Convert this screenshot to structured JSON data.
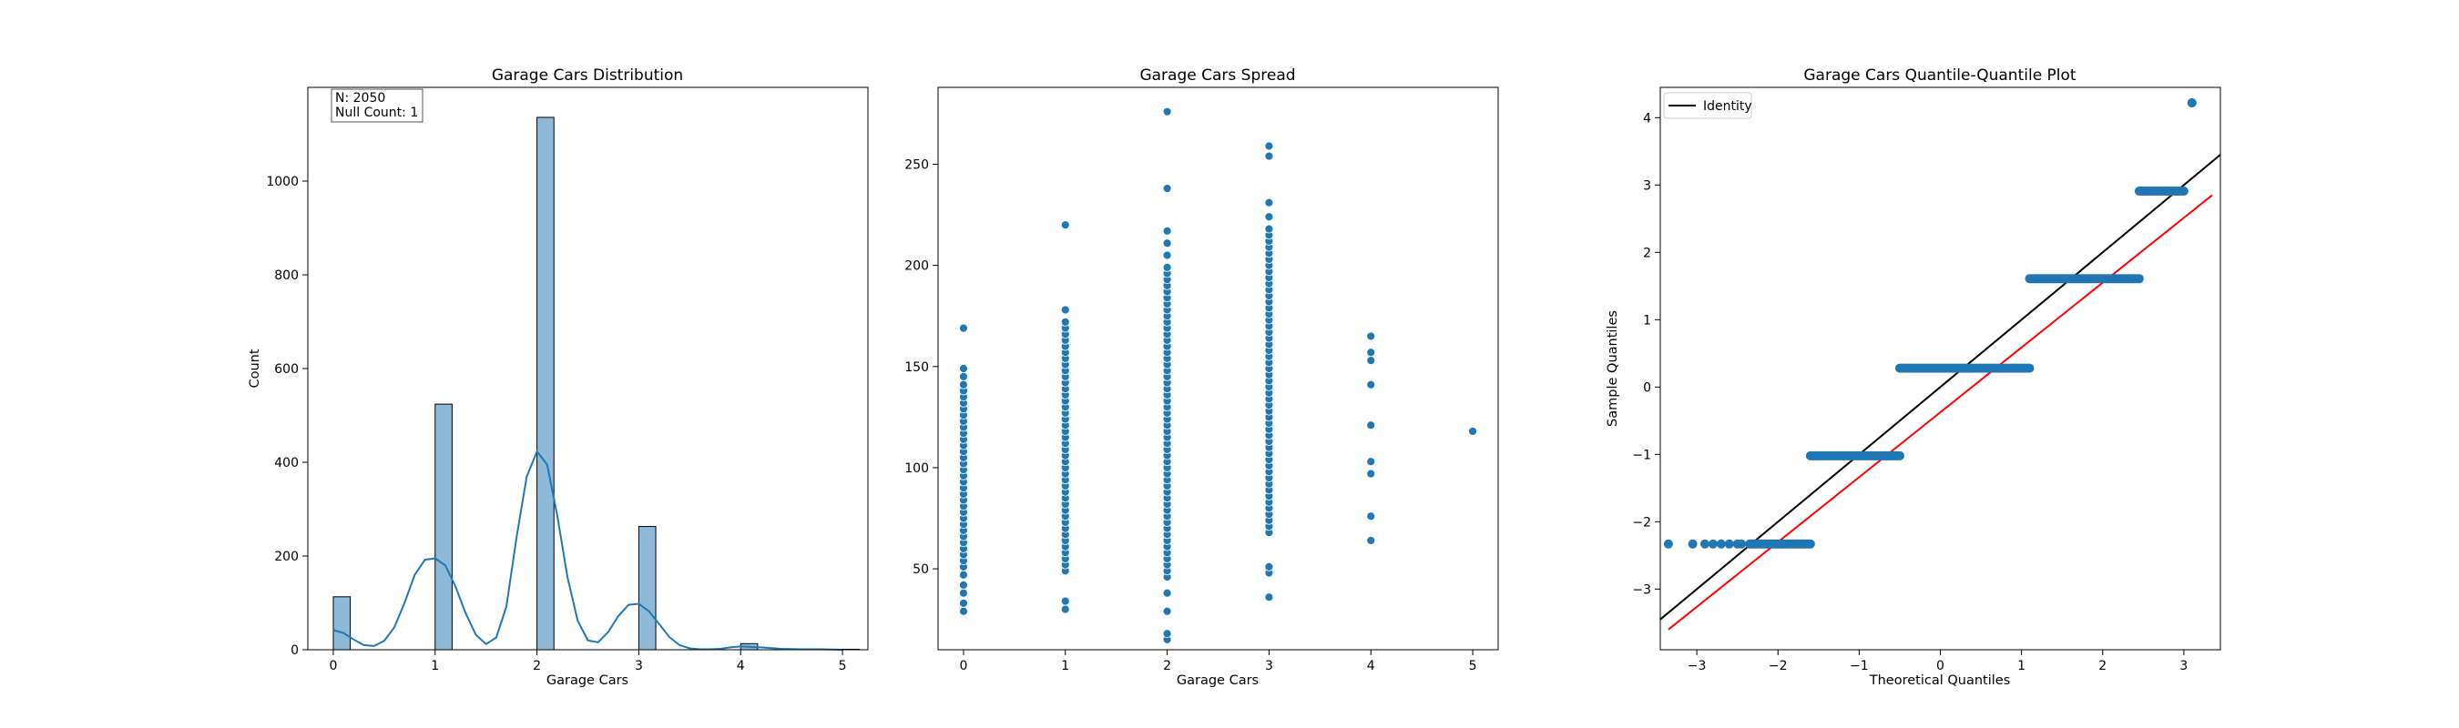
{
  "chart_data": [
    {
      "type": "bar",
      "title": "Garage Cars Distribution",
      "xlabel": "Garage Cars",
      "ylabel": "Count",
      "xlim": [
        -0.25,
        5.25
      ],
      "ylim": [
        0,
        1200
      ],
      "xticks": [
        0,
        1,
        2,
        3,
        4,
        5
      ],
      "yticks": [
        0,
        200,
        400,
        600,
        800,
        1000
      ],
      "bins": [
        {
          "x0": 0.0,
          "x1": 0.1667,
          "value": 113
        },
        {
          "x0": 1.0,
          "x1": 1.1667,
          "value": 524
        },
        {
          "x0": 2.0,
          "x1": 2.1667,
          "value": 1136
        },
        {
          "x0": 3.0,
          "x1": 3.1667,
          "value": 263
        },
        {
          "x0": 4.0,
          "x1": 4.1667,
          "value": 13
        },
        {
          "x0": 5.0,
          "x1": 5.1667,
          "value": 1
        }
      ],
      "kde": {
        "x": [
          0,
          0.1,
          0.2,
          0.3,
          0.4,
          0.5,
          0.6,
          0.7,
          0.8,
          0.9,
          1.0,
          1.1,
          1.2,
          1.3,
          1.4,
          1.5,
          1.6,
          1.7,
          1.8,
          1.9,
          2.0,
          2.1,
          2.2,
          2.3,
          2.4,
          2.5,
          2.6,
          2.7,
          2.8,
          2.9,
          3.0,
          3.1,
          3.2,
          3.3,
          3.4,
          3.5,
          3.6,
          3.7,
          3.8,
          3.9,
          4.0,
          4.2,
          4.4,
          4.6,
          4.8,
          5.0
        ],
        "y": [
          42,
          36,
          22,
          10,
          8,
          19,
          48,
          100,
          160,
          192,
          195,
          180,
          135,
          78,
          32,
          12,
          26,
          92,
          240,
          370,
          423,
          395,
          285,
          155,
          62,
          20,
          16,
          38,
          72,
          96,
          98,
          82,
          55,
          27,
          10,
          3,
          1,
          1,
          2,
          5,
          7,
          5,
          2,
          1,
          1,
          0
        ]
      },
      "annotation": [
        "N: 2050",
        "Null Count: 1"
      ],
      "colors": {
        "bar": "#8fb9d9",
        "edge": "#000000",
        "line": "#1f77b4"
      }
    },
    {
      "type": "scatter",
      "title": "Garage Cars Spread",
      "xlabel": "Garage Cars",
      "ylabel": "",
      "xlim": [
        -0.25,
        5.25
      ],
      "ylim": [
        10,
        288
      ],
      "xticks": [
        0,
        1,
        2,
        3,
        4,
        5
      ],
      "yticks": [
        50,
        100,
        150,
        200,
        250
      ],
      "points": [
        {
          "x": 0,
          "y": [
            29,
            33,
            38,
            42,
            47,
            51,
            54,
            57,
            60,
            63,
            66,
            69,
            72,
            75,
            78,
            81,
            84,
            87,
            90,
            93,
            96,
            99,
            102,
            105,
            108,
            111,
            114,
            117,
            120,
            123,
            126,
            129,
            132,
            135,
            138,
            141,
            145,
            149,
            169
          ]
        },
        {
          "x": 1,
          "y": [
            30,
            34,
            49,
            52,
            55,
            58,
            61,
            64,
            67,
            70,
            73,
            76,
            79,
            82,
            85,
            88,
            91,
            94,
            97,
            100,
            103,
            106,
            109,
            112,
            115,
            118,
            121,
            124,
            127,
            130,
            133,
            136,
            139,
            142,
            145,
            148,
            151,
            154,
            157,
            160,
            163,
            166,
            169,
            172,
            178,
            220
          ]
        },
        {
          "x": 2,
          "y": [
            15,
            18,
            29,
            38,
            46,
            49,
            52,
            55,
            58,
            61,
            64,
            67,
            70,
            73,
            76,
            79,
            82,
            85,
            88,
            91,
            94,
            97,
            100,
            103,
            106,
            109,
            112,
            115,
            118,
            121,
            124,
            127,
            130,
            133,
            136,
            139,
            142,
            145,
            148,
            151,
            154,
            157,
            160,
            163,
            166,
            169,
            172,
            175,
            178,
            181,
            184,
            187,
            190,
            193,
            196,
            199,
            205,
            211,
            217,
            238,
            276
          ]
        },
        {
          "x": 3,
          "y": [
            36,
            48,
            51,
            68,
            71,
            74,
            77,
            80,
            83,
            86,
            89,
            92,
            95,
            98,
            101,
            104,
            107,
            110,
            113,
            116,
            119,
            122,
            125,
            128,
            131,
            134,
            137,
            140,
            143,
            146,
            149,
            152,
            155,
            158,
            161,
            164,
            167,
            170,
            173,
            176,
            179,
            182,
            185,
            188,
            191,
            194,
            197,
            200,
            203,
            206,
            209,
            212,
            215,
            218,
            224,
            231,
            254,
            259
          ]
        },
        {
          "x": 4,
          "y": [
            64,
            76,
            97,
            103,
            121,
            141,
            153,
            157,
            165
          ]
        },
        {
          "x": 5,
          "y": [
            118
          ]
        }
      ],
      "colors": {
        "point": "#1f77b4"
      }
    },
    {
      "type": "scatter",
      "title": "Garage Cars Quantile-Quantile Plot",
      "xlabel": "Theoretical Quantiles",
      "ylabel": "Sample Quantiles",
      "xlim": [
        -3.45,
        3.45
      ],
      "ylim": [
        -3.9,
        4.45
      ],
      "xticks": [
        -3,
        -2,
        -1,
        0,
        1,
        2,
        3
      ],
      "yticks": [
        -3,
        -2,
        -1,
        0,
        1,
        2,
        3,
        4
      ],
      "legend": {
        "entries": [
          "Identity"
        ],
        "position": "top-left"
      },
      "steps": [
        {
          "y": -2.33,
          "x_from": -2.35,
          "x_to": -1.6,
          "outliers": [
            -3.35,
            -3.05,
            -2.9,
            -2.8,
            -2.7,
            -2.6,
            -2.5,
            -2.45
          ]
        },
        {
          "y": -1.02,
          "x_from": -1.6,
          "x_to": -0.5
        },
        {
          "y": 0.28,
          "x_from": -0.5,
          "x_to": 1.1
        },
        {
          "y": 1.61,
          "x_from": 1.1,
          "x_to": 2.45
        },
        {
          "y": 2.91,
          "x_from": 2.45,
          "x_to": 3.0
        },
        {
          "y": 4.22,
          "x_from": 3.1,
          "x_to": 3.1
        }
      ],
      "identity_line": {
        "x": [
          -3.45,
          3.45
        ],
        "y": [
          -3.45,
          3.45
        ]
      },
      "fit_line": {
        "x": [
          -3.35,
          3.35
        ],
        "y": [
          -3.6,
          2.85
        ]
      },
      "colors": {
        "point": "#1f77b4",
        "identity": "#000000",
        "fit": "#ff0000"
      }
    }
  ]
}
